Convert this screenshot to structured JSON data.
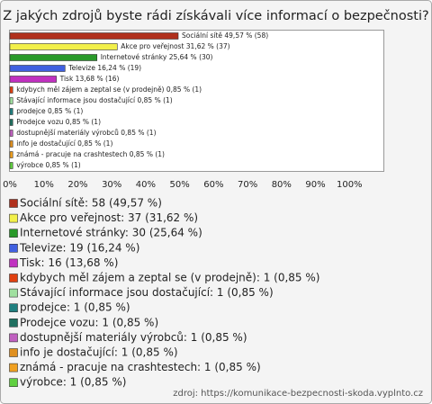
{
  "chart_data": {
    "type": "bar",
    "orientation": "horizontal",
    "title": "Z jakých zdrojů byste rádi získávali více informací o bezpečnosti?",
    "categories": [
      "Sociální sítě",
      "Akce pro veřejnost",
      "Internetové stránky",
      "Televize",
      "Tisk",
      "kdybych měl zájem a zeptal se (v prodejně)",
      "Stávající informace jsou dostačující",
      "prodejce",
      "Prodejce vozu",
      "dostupnější materiály výrobců",
      "info je dostačující",
      "známá - pracuje na crashtestech",
      "výrobce"
    ],
    "values": [
      49.57,
      31.62,
      25.64,
      16.24,
      13.68,
      0.85,
      0.85,
      0.85,
      0.85,
      0.85,
      0.85,
      0.85,
      0.85
    ],
    "value_labels": [
      "Sociální sítě 49,57 % (58)",
      "Akce pro veřejnost 31,62 % (37)",
      "Internetové stránky 25,64 % (30)",
      "Televize 16,24 % (19)",
      "Tisk 13,68 % (16)",
      "kdybych měl zájem a zeptal se (v prodejně) 0,85 % (1)",
      "Stávající informace jsou dostačující 0,85 % (1)",
      "prodejce 0,85 % (1)",
      "Prodejce vozu 0,85 % (1)",
      "dostupnější materiály výrobců 0,85 % (1)",
      "info je dostačující 0,85 % (1)",
      "známá - pracuje na crashtestech 0,85 % (1)",
      "výrobce 0,85 % (1)"
    ],
    "legend_labels": [
      "Sociální sítě: 58 (49,57 %)",
      "Akce pro veřejnost: 37 (31,62 %)",
      "Internetové stránky: 30 (25,64 %)",
      "Televize: 19 (16,24 %)",
      "Tisk: 16 (13,68 %)",
      "kdybych měl zájem a zeptal se (v prodejně): 1 (0,85 %)",
      "Stávající informace jsou dostačující: 1 (0,85 %)",
      "prodejce: 1 (0,85 %)",
      "Prodejce vozu: 1 (0,85 %)",
      "dostupnější materiály výrobců: 1 (0,85 %)",
      "info je dostačující: 1 (0,85 %)",
      "známá - pracuje na crashtestech: 1 (0,85 %)",
      "výrobce: 1 (0,85 %)"
    ],
    "colors": [
      "#b0301c",
      "#f2f04a",
      "#2a9a2a",
      "#4060e0",
      "#c030c0",
      "#e04010",
      "#a0e0a0",
      "#208080",
      "#207060",
      "#c060c0",
      "#e09020",
      "#f0a020",
      "#60d040"
    ],
    "xlim": [
      0,
      110
    ],
    "xticks": [
      {
        "value": 0,
        "label": "0%"
      },
      {
        "value": 10,
        "label": "10%"
      },
      {
        "value": 20,
        "label": "20%"
      },
      {
        "value": 30,
        "label": "30%"
      },
      {
        "value": 40,
        "label": "40%"
      },
      {
        "value": 50,
        "label": "50%"
      },
      {
        "value": 60,
        "label": "60%"
      },
      {
        "value": 70,
        "label": "70%"
      },
      {
        "value": 80,
        "label": "80%"
      },
      {
        "value": 90,
        "label": "90%"
      },
      {
        "value": 100,
        "label": "100%"
      }
    ],
    "grid": false,
    "source": "zdroj: https://komunikace-bezpecnosti-skoda.vyplnto.cz"
  }
}
